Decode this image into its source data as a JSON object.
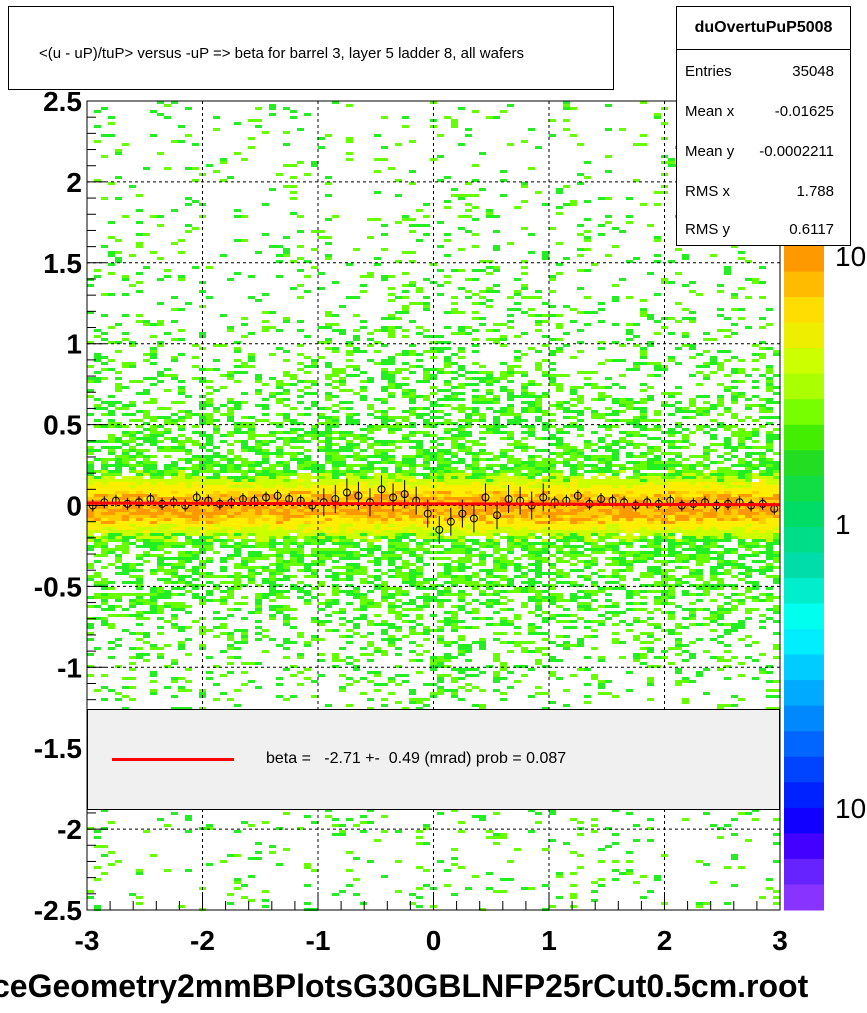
{
  "chart_data": {
    "type": "heatmap",
    "title": "<(u - uP)/tuP> versus  -uP => beta for barrel 3, layer 5 ladder 8, all wafers",
    "xlim": [
      -3,
      3
    ],
    "ylim": [
      -2.5,
      2.5
    ],
    "x_ticks": [
      "-3",
      "-2",
      "-1",
      "0",
      "1",
      "2",
      "3"
    ],
    "y_ticks": [
      "2.5",
      "2",
      "1.5",
      "1",
      "0.5",
      "0",
      "-0.5",
      "-1",
      "-1.5",
      "-2",
      "-2.5"
    ],
    "grid": true,
    "colorbar": {
      "scale": "log",
      "labels": [
        "10",
        "1",
        "10"
      ]
    },
    "profile_points": {
      "x": [
        -2.95,
        -2.85,
        -2.75,
        -2.65,
        -2.55,
        -2.45,
        -2.35,
        -2.25,
        -2.15,
        -2.05,
        -1.95,
        -1.85,
        -1.75,
        -1.65,
        -1.55,
        -1.45,
        -1.35,
        -1.25,
        -1.15,
        -1.05,
        -0.95,
        -0.85,
        -0.75,
        -0.65,
        -0.55,
        -0.45,
        -0.35,
        -0.25,
        -0.15,
        -0.05,
        0.05,
        0.15,
        0.25,
        0.35,
        0.45,
        0.55,
        0.65,
        0.75,
        0.85,
        0.95,
        1.05,
        1.15,
        1.25,
        1.35,
        1.45,
        1.55,
        1.65,
        1.75,
        1.85,
        1.95,
        2.05,
        2.15,
        2.25,
        2.35,
        2.45,
        2.55,
        2.65,
        2.75,
        2.85,
        2.95
      ],
      "y": [
        0.0,
        0.02,
        0.03,
        0.01,
        0.02,
        0.04,
        0.01,
        0.02,
        0.0,
        0.05,
        0.03,
        0.01,
        0.02,
        0.04,
        0.03,
        0.05,
        0.06,
        0.04,
        0.03,
        0.0,
        0.02,
        0.04,
        0.08,
        0.06,
        0.02,
        0.1,
        0.05,
        0.07,
        0.03,
        -0.05,
        -0.15,
        -0.1,
        -0.05,
        -0.08,
        0.05,
        -0.06,
        0.04,
        0.03,
        0.0,
        0.05,
        0.02,
        0.03,
        0.06,
        0.01,
        0.04,
        0.03,
        0.02,
        0.0,
        0.02,
        0.01,
        0.03,
        0.0,
        0.01,
        0.02,
        0.0,
        0.01,
        0.02,
        0.0,
        0.01,
        -0.02
      ]
    },
    "fit_line": {
      "x": [
        -3,
        3
      ],
      "y": [
        0.015,
        0.005
      ]
    }
  },
  "stats": {
    "name": "duOvertuPuP5008",
    "rows": [
      {
        "label": "Entries",
        "value": "35048"
      },
      {
        "label": "Mean x",
        "value": "-0.01625"
      },
      {
        "label": "Mean y",
        "value": "-0.0002211"
      },
      {
        "label": "RMS x",
        "value": "1.788"
      },
      {
        "label": "RMS y",
        "value": "0.6117"
      }
    ]
  },
  "fit_legend": {
    "text": "beta =   -2.71 +-  0.49 (mrad) prob = 0.087",
    "color": "#ff0000"
  },
  "filename": "ceGeometry2mmBPlotsG30GBLNFP25rCut0.5cm.root"
}
